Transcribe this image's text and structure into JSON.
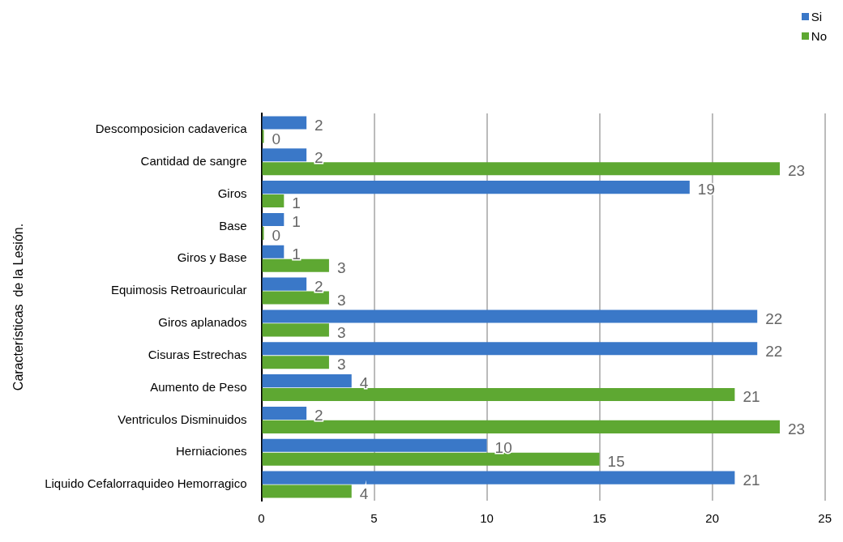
{
  "chart_data": {
    "type": "bar",
    "orientation": "horizontal",
    "ylabel": "Características  de la Lesión.",
    "categories": [
      "Descomposicion cadaverica",
      "Cantidad de sangre",
      "Giros",
      "Base",
      "Giros y Base",
      "Equimosis Retroauricular",
      "Giros aplanados",
      "Cisuras Estrechas",
      "Aumento de Peso",
      "Ventriculos Disminuidos",
      "Herniaciones",
      "Liquido Cefalorraquideo Hemorragico"
    ],
    "series": [
      {
        "name": "Si",
        "color": "#3a78c8",
        "values": [
          2,
          2,
          19,
          1,
          1,
          2,
          22,
          22,
          4,
          2,
          10,
          21
        ]
      },
      {
        "name": "No",
        "color": "#5ea832",
        "values": [
          0,
          23,
          1,
          0,
          3,
          3,
          3,
          3,
          21,
          23,
          15,
          4
        ]
      }
    ],
    "xlim": [
      0,
      25
    ],
    "xticks": [
      0,
      5,
      10,
      15,
      20,
      25
    ],
    "grid": "x",
    "legend": "top right",
    "data_labels": true
  }
}
